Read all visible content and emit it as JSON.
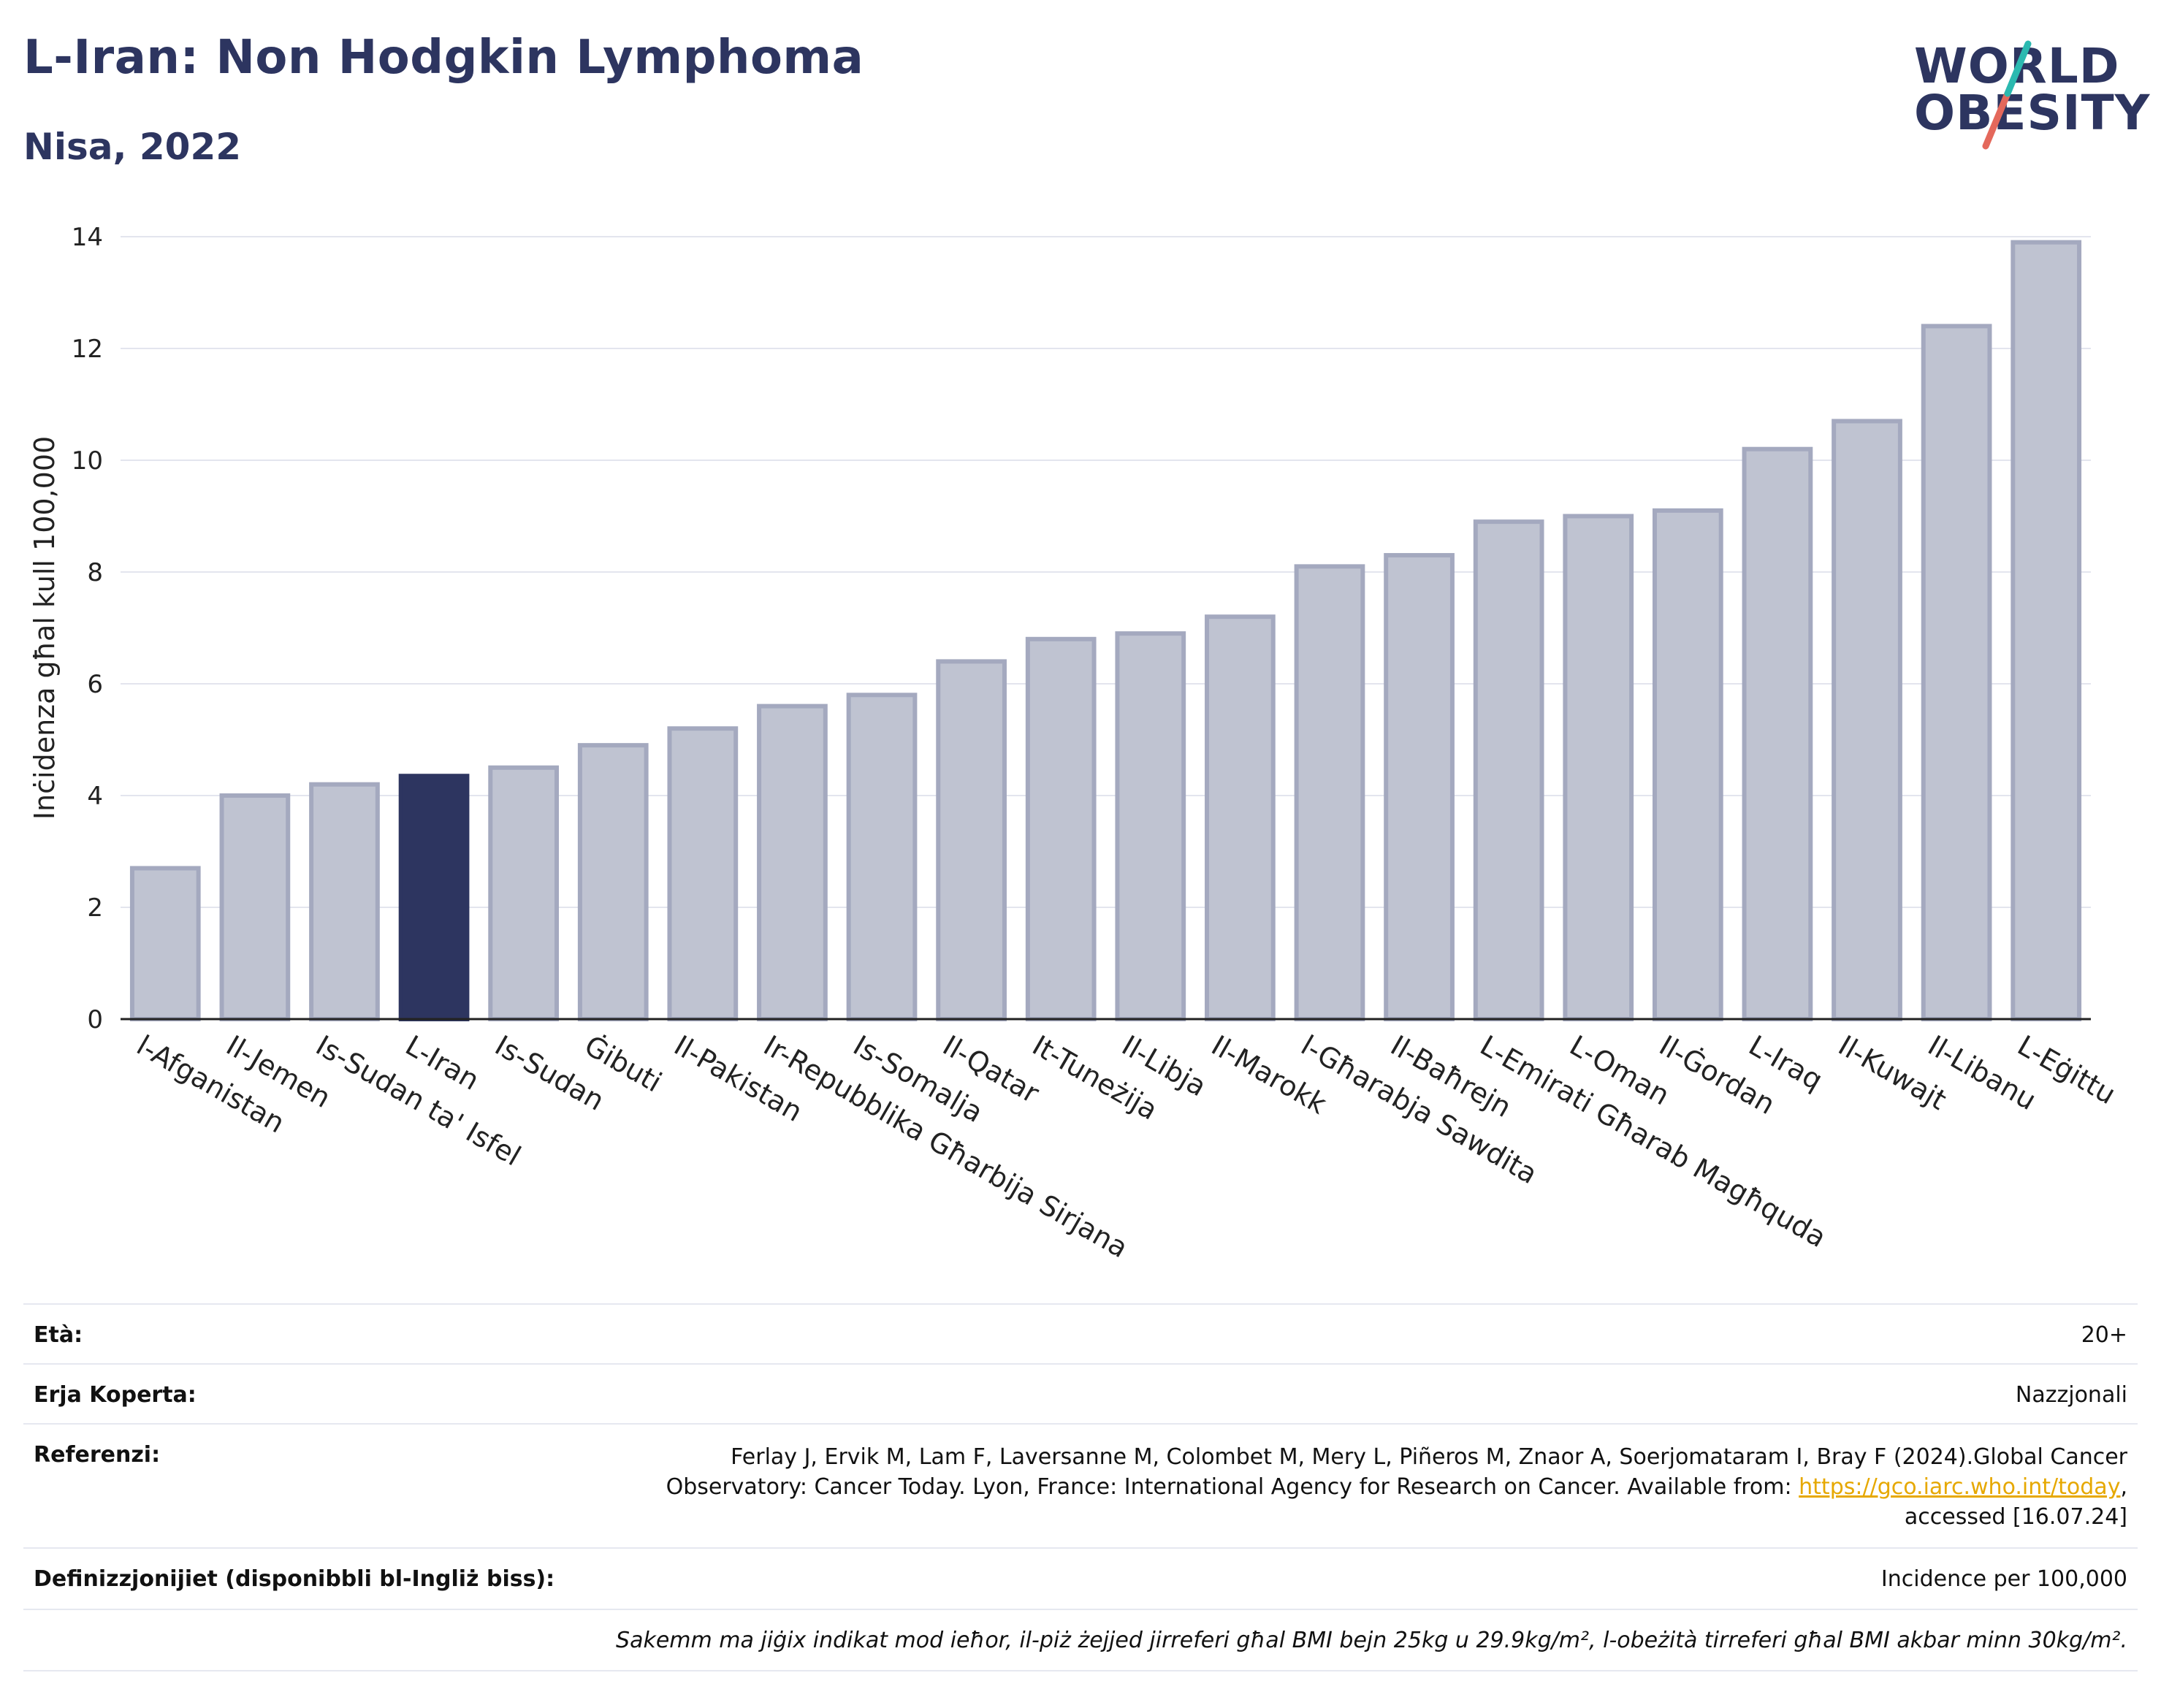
{
  "header": {
    "title": "L-Iran: Non Hodgkin Lymphoma",
    "subtitle": "Nisa, 2022"
  },
  "logo": {
    "line1": "WORLD",
    "line2": "OBESITY"
  },
  "colors": {
    "highlight": "#2d3560",
    "bar": "#bfc3d1",
    "bar_edge": "#a4a9bf",
    "title": "#2d3560"
  },
  "chart_data": {
    "type": "bar",
    "ylabel": "Inċidenza għal kull 100,000",
    "ylim": [
      0,
      14
    ],
    "yticks": [
      0,
      2,
      4,
      6,
      8,
      10,
      12,
      14
    ],
    "grid": true,
    "highlight": "L-Iran",
    "categories": [
      "l-Afganistan",
      "Il-Jemen",
      "Is-Sudan ta' Isfel",
      "L-Iran",
      "Is-Sudan",
      "Ġibuti",
      "Il-Pakistan",
      "Ir-Repubblika Għarbija Sirjana",
      "Is-Somalja",
      "Il-Qatar",
      "It-Tuneżija",
      "Il-Libja",
      "Il-Marokk",
      "l-Għarabja Sawdita",
      "Il-Baħrejn",
      "L-Emirati Għarab Magħquda",
      "L-Oman",
      "Il-Ġordan",
      "L-Iraq",
      "Il-Kuwajt",
      "Il-Libanu",
      "L-Eġittu"
    ],
    "values": [
      2.7,
      4.0,
      4.2,
      4.35,
      4.5,
      4.9,
      5.2,
      5.6,
      5.8,
      6.4,
      6.8,
      6.9,
      7.2,
      8.1,
      8.3,
      8.9,
      9.0,
      9.1,
      10.2,
      10.7,
      12.4,
      13.9
    ]
  },
  "info": {
    "age_label": "Età:",
    "age_value": "20+",
    "area_label": "Erja Koperta:",
    "area_value": "Nazzjonali",
    "ref_label": "Referenzi:",
    "ref_line1": "Ferlay J, Ervik M, Lam F, Laversanne M, Colombet M, Mery L, Piñeros M, Znaor A, Soerjomataram I, Bray F (2024).Global Cancer",
    "ref_line2_pre": "Observatory: Cancer Today. Lyon, France: International Agency for Research on Cancer. Available from: ",
    "ref_link": "https://gco.iarc.who.int/today",
    "ref_line2_post": ",",
    "ref_line3": "accessed [16.07.24]",
    "def_label": "Definizzjonijiet (disponibbli bl-Ingliż biss):",
    "def_value": "Incidence per 100,000",
    "note": "Sakemm ma jiġix indikat mod ieħor, il-piż żejjed jirreferi għal BMI bejn 25kg u 29.9kg/m², l-obeżità tirreferi għal BMI akbar minn 30kg/m²."
  }
}
